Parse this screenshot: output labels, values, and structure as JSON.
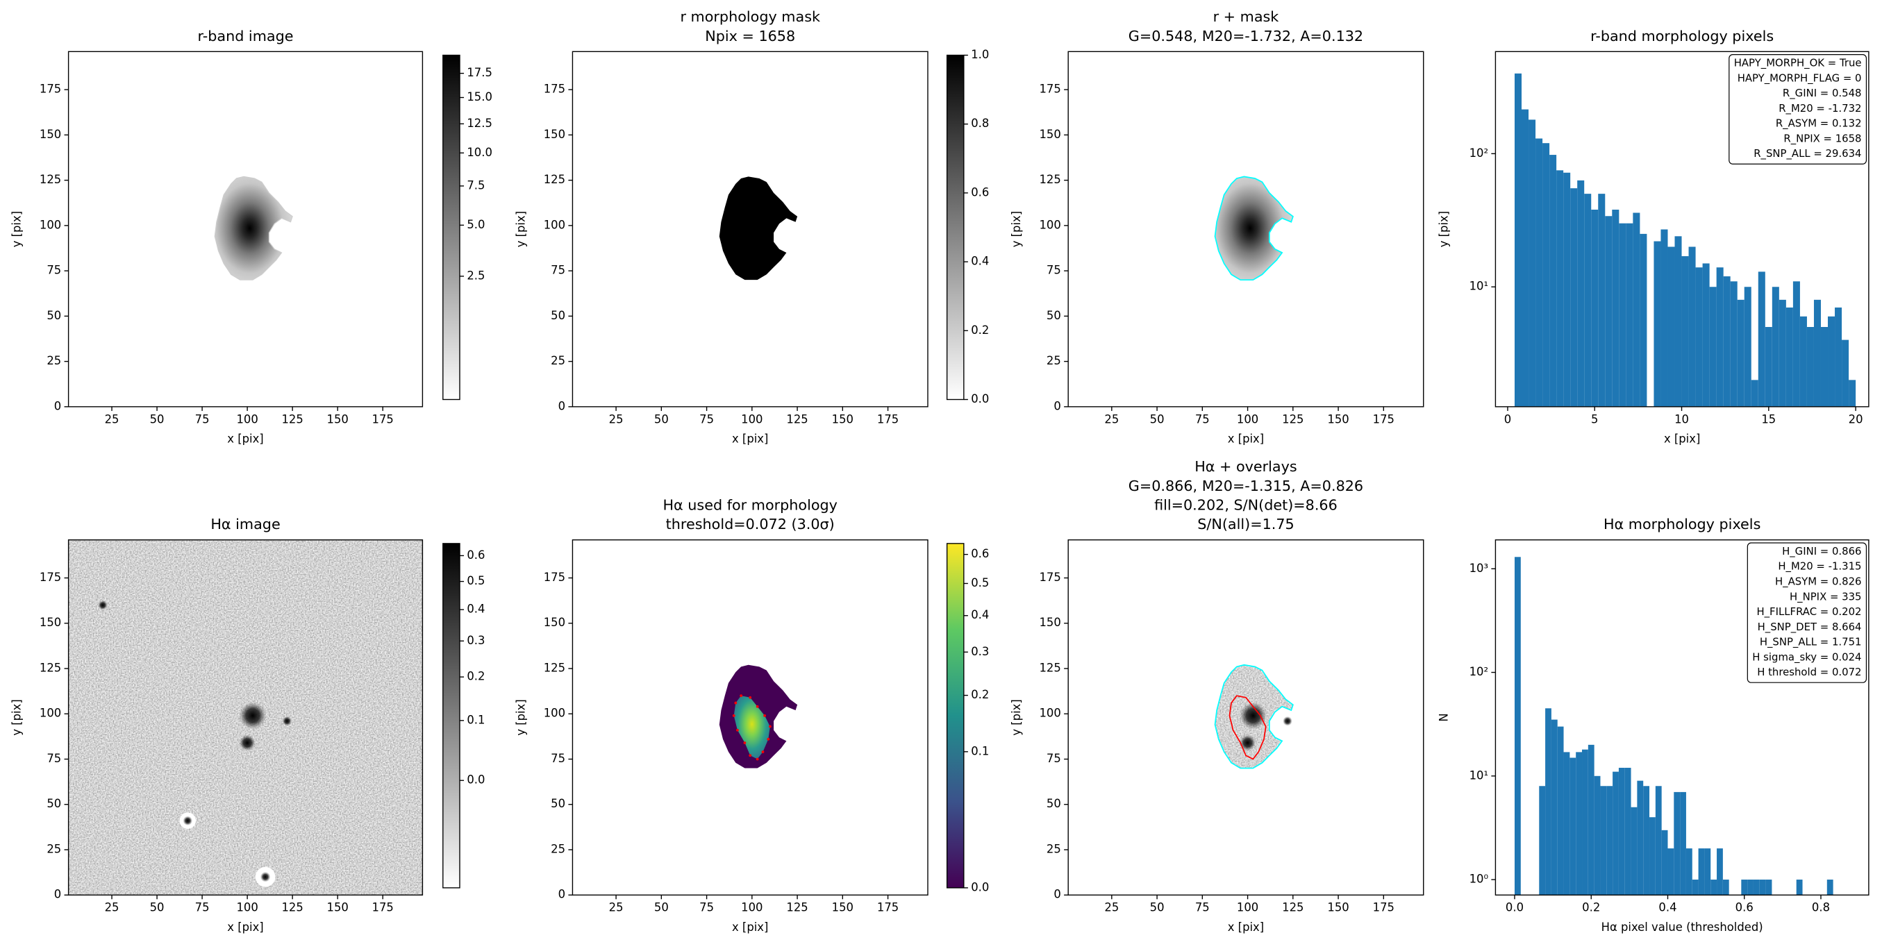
{
  "chart_data": [
    {
      "type": "image",
      "render": "r-image",
      "title": [
        "r-band image"
      ],
      "xlabel": "x [pix]",
      "ylabel": "y [pix]",
      "xlim": [
        1,
        197
      ],
      "ylim": [
        0,
        196
      ],
      "xticks": [
        25,
        50,
        75,
        100,
        125,
        150,
        175
      ],
      "yticks": [
        0,
        25,
        50,
        75,
        100,
        125,
        150,
        175
      ],
      "cmap": "gray_r",
      "colorbar": {
        "lim": [
          0,
          19.5
        ],
        "stretch": "sqrt",
        "ticks": [
          2.5,
          {
            "value": 5,
            "label": "5.0"
          },
          7.5,
          {
            "value": 10,
            "label": "10.0"
          },
          12.5,
          {
            "value": 15,
            "label": "15.0"
          },
          17.5
        ]
      }
    },
    {
      "type": "image",
      "render": "r-mask",
      "title": [
        "r morphology mask",
        "Npix = 1658"
      ],
      "xlabel": "x [pix]",
      "ylabel": "y [pix]",
      "xlim": [
        1,
        197
      ],
      "ylim": [
        0,
        196
      ],
      "xticks": [
        25,
        50,
        75,
        100,
        125,
        150,
        175
      ],
      "yticks": [
        0,
        25,
        50,
        75,
        100,
        125,
        150,
        175
      ],
      "cmap": "gray_r",
      "colorbar": {
        "lim": [
          0,
          1
        ],
        "stretch": "linear",
        "ticks": [
          {
            "value": 0,
            "label": "0.0"
          },
          0.2,
          0.4,
          0.6,
          0.8,
          {
            "value": 1,
            "label": "1.0"
          }
        ]
      }
    },
    {
      "type": "image",
      "render": "r-overlay",
      "title": [
        "r + mask",
        "G=0.548, M20=-1.732, A=0.132"
      ],
      "xlabel": "x [pix]",
      "ylabel": "y [pix]",
      "xlim": [
        1,
        197
      ],
      "ylim": [
        0,
        196
      ],
      "xticks": [
        25,
        50,
        75,
        100,
        125,
        150,
        175
      ],
      "yticks": [
        0,
        25,
        50,
        75,
        100,
        125,
        150,
        175
      ],
      "cmap": "gray_r",
      "contour_colors": [
        "#00ffff"
      ]
    },
    {
      "type": "histogram",
      "title": [
        "r-band morphology pixels"
      ],
      "xlabel": "x [pix]",
      "ylabel": "y [pix]",
      "bins": [
        0.4,
        0.8,
        1.2,
        1.6,
        2,
        2.4,
        2.8,
        3.2,
        3.6,
        4,
        4.4,
        4.8,
        5.2,
        5.6,
        6,
        6.4,
        6.8,
        7.2,
        7.6,
        8,
        8.4,
        8.8,
        9.2,
        9.6,
        10,
        10.4,
        10.8,
        11.2,
        11.6,
        12,
        12.4,
        12.8,
        13.2,
        13.6,
        14,
        14.4,
        14.8,
        15.2,
        15.6,
        16,
        16.4,
        16.8,
        17.2,
        17.6,
        18,
        18.4,
        18.8,
        19.2,
        19.6,
        20
      ],
      "values": [
        400,
        215,
        180,
        130,
        120,
        98,
        75,
        72,
        55,
        63,
        50,
        38,
        50,
        34,
        38,
        30,
        30,
        36,
        25,
        1,
        22,
        27,
        20,
        24,
        17,
        20,
        14,
        15,
        10,
        14,
        12,
        11,
        8,
        10,
        2,
        13,
        5,
        10,
        8,
        7,
        11,
        6,
        5,
        8,
        5,
        6,
        7,
        4,
        2
      ],
      "color": "#1f77b4",
      "xlim": [
        -0.7,
        20.75
      ],
      "ylim": [
        1.26,
        584
      ],
      "ylog": true,
      "xticks": [
        0,
        5,
        10,
        15,
        20
      ],
      "yticks": [
        {
          "value": 10,
          "label": "10¹"
        },
        {
          "value": 100,
          "label": "10²"
        }
      ],
      "stats": [
        "HAPY_MORPH_OK = True",
        "HAPY_MORPH_FLAG = 0",
        "R_GINI = 0.548",
        "R_M20 = -1.732",
        "R_ASYM = 0.132",
        "R_NPIX = 1658",
        "R_SNP_ALL = 29.634"
      ]
    },
    {
      "type": "image",
      "render": "ha-image",
      "title": [
        "Hα image"
      ],
      "xlabel": "x [pix]",
      "ylabel": "y [pix]",
      "xlim": [
        1,
        197
      ],
      "ylim": [
        0,
        196
      ],
      "xticks": [
        25,
        50,
        75,
        100,
        125,
        150,
        175
      ],
      "yticks": [
        0,
        25,
        50,
        75,
        100,
        125,
        150,
        175
      ],
      "cmap": "gray_r",
      "colorbar": {
        "lim": [
          -0.07,
          0.65
        ],
        "stretch": "sqrt",
        "ticks": [
          {
            "value": 0,
            "label": "0.0"
          },
          0.1,
          0.2,
          0.3,
          0.4,
          0.5,
          0.6
        ]
      }
    },
    {
      "type": "image",
      "render": "ha-masked",
      "title": [
        "Hα used for morphology",
        "threshold=0.072 (3.0σ)"
      ],
      "xlabel": "x [pix]",
      "ylabel": "y [pix]",
      "xlim": [
        1,
        197
      ],
      "ylim": [
        0,
        196
      ],
      "xticks": [
        25,
        50,
        75,
        100,
        125,
        150,
        175
      ],
      "yticks": [
        0,
        25,
        50,
        75,
        100,
        125,
        150,
        175
      ],
      "cmap": "viridis",
      "contour_colors": [
        "#ff0000"
      ],
      "colorbar": {
        "lim": [
          0,
          0.64
        ],
        "stretch": "sqrt",
        "ticks": [
          {
            "value": 0,
            "label": "0.0"
          },
          0.1,
          0.2,
          0.3,
          0.4,
          0.5,
          0.6
        ]
      }
    },
    {
      "type": "image",
      "render": "ha-overlay",
      "title": [
        "Hα + overlays",
        "G=0.866, M20=-1.315, A=0.826",
        "fill=0.202, S/N(det)=8.66",
        "S/N(all)=1.75"
      ],
      "xlabel": "x [pix]",
      "ylabel": "y [pix]",
      "xlim": [
        1,
        197
      ],
      "ylim": [
        0,
        196
      ],
      "xticks": [
        25,
        50,
        75,
        100,
        125,
        150,
        175
      ],
      "yticks": [
        0,
        25,
        50,
        75,
        100,
        125,
        150,
        175
      ],
      "cmap": "gray_r",
      "contour_colors": [
        "#00ffff",
        "#ff0000"
      ]
    },
    {
      "type": "histogram",
      "title": [
        "Hα morphology pixels"
      ],
      "xlabel": "Hα pixel value (thresholded)",
      "ylabel": "N",
      "bins": [
        0,
        0.016,
        0.032,
        0.048,
        0.064,
        0.08,
        0.096,
        0.112,
        0.128,
        0.144,
        0.16,
        0.176,
        0.192,
        0.208,
        0.224,
        0.24,
        0.256,
        0.272,
        0.288,
        0.304,
        0.32,
        0.336,
        0.352,
        0.368,
        0.384,
        0.4,
        0.416,
        0.432,
        0.448,
        0.464,
        0.48,
        0.496,
        0.512,
        0.528,
        0.544,
        0.56,
        0.576,
        0.592,
        0.608,
        0.624,
        0.64,
        0.656,
        0.672,
        0.688,
        0.704,
        0.72,
        0.736,
        0.752,
        0.768,
        0.784,
        0.8,
        0.816,
        0.832
      ],
      "values": [
        1300,
        0,
        0,
        0,
        8,
        45,
        35,
        30,
        17,
        15,
        17,
        18,
        20,
        10,
        8,
        8,
        11,
        12,
        12,
        5,
        9,
        8,
        4,
        8,
        3,
        2,
        7,
        7,
        2,
        1,
        2,
        2,
        1,
        2,
        1,
        0,
        0,
        1,
        1,
        1,
        1,
        1,
        0,
        0,
        0,
        0,
        1,
        0,
        0,
        0,
        0,
        1
      ],
      "color": "#1f77b4",
      "xlim": [
        -0.05,
        0.925
      ],
      "ylim": [
        0.71,
        1900
      ],
      "ylog": true,
      "xticks": [
        {
          "value": 0,
          "label": "0.0"
        },
        0.2,
        0.4,
        0.6,
        0.8
      ],
      "yticks": [
        {
          "value": 1,
          "label": "10⁰"
        },
        {
          "value": 10,
          "label": "10¹"
        },
        {
          "value": 100,
          "label": "10²"
        },
        {
          "value": 1000,
          "label": "10³"
        }
      ],
      "stats": [
        "H_GINI = 0.866",
        "H_M20 = -1.315",
        "H_ASYM = 0.826",
        "H_NPIX = 335",
        "H_FILLFRAC = 0.202",
        "H_SNP_DET = 8.664",
        "H_SNP_ALL = 1.751",
        "H sigma_sky = 0.024",
        "H threshold = 0.072"
      ]
    }
  ]
}
